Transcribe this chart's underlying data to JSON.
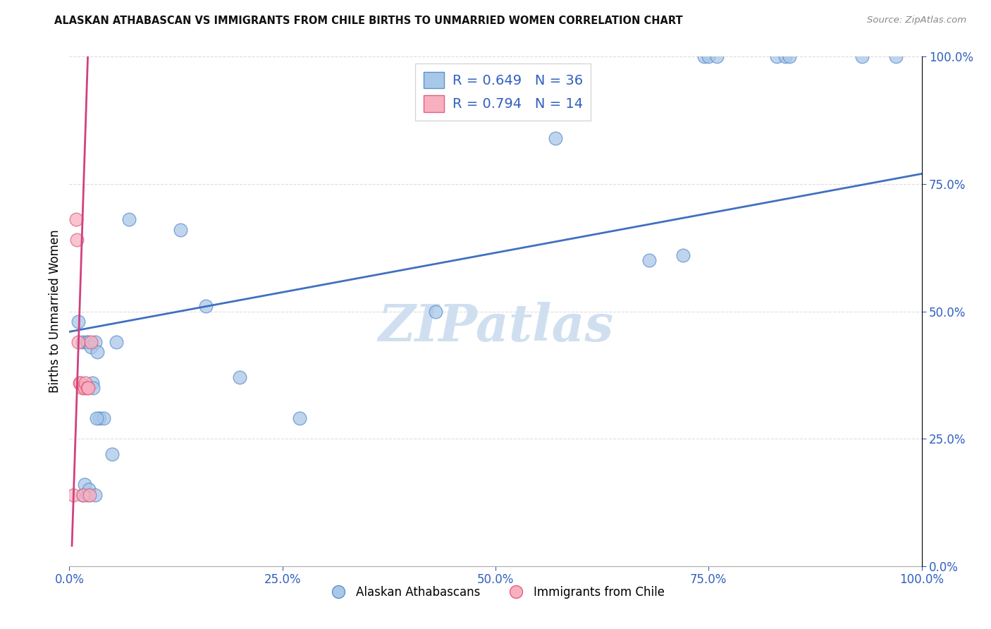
{
  "title": "ALASKAN ATHABASCAN VS IMMIGRANTS FROM CHILE BIRTHS TO UNMARRIED WOMEN CORRELATION CHART",
  "source": "Source: ZipAtlas.com",
  "ylabel": "Births to Unmarried Women",
  "blue_label": "Alaskan Athabascans",
  "pink_label": "Immigrants from Chile",
  "blue_R": 0.649,
  "blue_N": 36,
  "pink_R": 0.794,
  "pink_N": 14,
  "blue_scatter_color": "#a8c8e8",
  "blue_edge_color": "#6090d0",
  "pink_scatter_color": "#f8b0c0",
  "pink_edge_color": "#e06080",
  "blue_line_color": "#4070c0",
  "pink_line_color": "#d04080",
  "legend_text_color": "#3060c0",
  "watermark_color": "#d0dff0",
  "blue_x": [
    0.01,
    0.015,
    0.02,
    0.022,
    0.025,
    0.027,
    0.028,
    0.03,
    0.033,
    0.035,
    0.04,
    0.05,
    0.055,
    0.07,
    0.13,
    0.16,
    0.2,
    0.27,
    0.43,
    0.57,
    0.68,
    0.72,
    0.745,
    0.75,
    0.76,
    0.83,
    0.84,
    0.845,
    0.93,
    0.97,
    0.015,
    0.018,
    0.021,
    0.023,
    0.03,
    0.032
  ],
  "blue_y": [
    0.48,
    0.44,
    0.44,
    0.44,
    0.43,
    0.36,
    0.35,
    0.44,
    0.42,
    0.29,
    0.29,
    0.22,
    0.44,
    0.68,
    0.66,
    0.51,
    0.37,
    0.29,
    0.5,
    0.84,
    0.6,
    0.61,
    1.0,
    1.0,
    1.0,
    1.0,
    1.0,
    1.0,
    1.0,
    1.0,
    0.14,
    0.16,
    0.14,
    0.15,
    0.14,
    0.29
  ],
  "pink_x": [
    0.005,
    0.008,
    0.009,
    0.01,
    0.012,
    0.013,
    0.015,
    0.016,
    0.018,
    0.019,
    0.021,
    0.022,
    0.024,
    0.025
  ],
  "pink_y": [
    0.14,
    0.68,
    0.64,
    0.44,
    0.36,
    0.36,
    0.35,
    0.14,
    0.35,
    0.36,
    0.35,
    0.35,
    0.14,
    0.44
  ],
  "blue_line_x0": 0.0,
  "blue_line_y0": 0.46,
  "blue_line_x1": 1.0,
  "blue_line_y1": 0.77,
  "pink_line_x0": 0.003,
  "pink_line_y0": 0.04,
  "pink_line_x1": 0.022,
  "pink_line_y1": 1.02,
  "xlim": [
    0.0,
    1.0
  ],
  "ylim": [
    0.0,
    1.0
  ],
  "xticks": [
    0.0,
    0.25,
    0.5,
    0.75,
    1.0
  ],
  "yticks": [
    0.0,
    0.25,
    0.5,
    0.75,
    1.0
  ],
  "grid_color": "#dddddd",
  "marker_size": 180
}
